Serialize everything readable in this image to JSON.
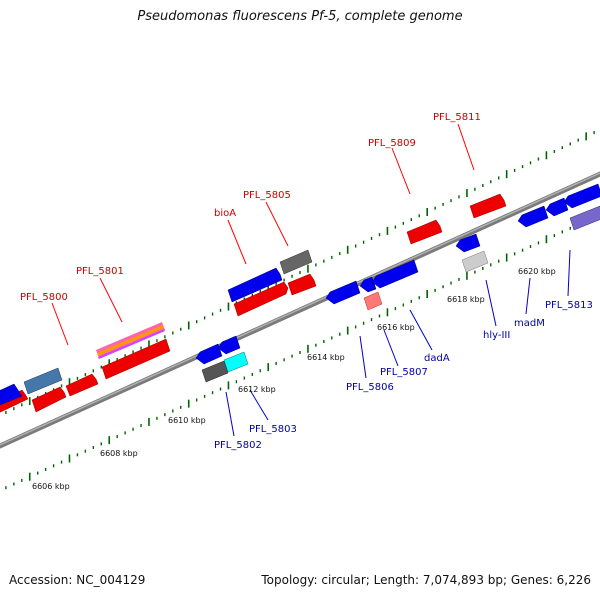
{
  "title": "Pseudomonas fluorescens Pf-5, complete genome",
  "footer": {
    "accession": "Accession: NC_004129",
    "summary": "Topology: circular; Length: 7,074,893 bp; Genes: 6,226"
  },
  "colors": {
    "forward_gene": "#ff0000",
    "reverse_gene": "#0000ff",
    "backbone": "#808080",
    "ticks": "#006400",
    "forward_label": "#cc0000",
    "reverse_label": "#0000aa"
  },
  "scale_labels": [
    "6606 kbp",
    "6608 kbp",
    "6610 kbp",
    "6612 kbp",
    "6614 kbp",
    "6616 kbp",
    "6618 kbp",
    "6620 kbp"
  ],
  "forward_gene_labels": [
    "PFL_5800",
    "PFL_5801",
    "bioA",
    "PFL_5805",
    "PFL_5809",
    "PFL_5811"
  ],
  "reverse_gene_labels": [
    "PFL_5802",
    "PFL_5803",
    "PFL_5806",
    "PFL_5807",
    "dadA",
    "hly-III",
    "madM",
    "PFL_5813"
  ]
}
